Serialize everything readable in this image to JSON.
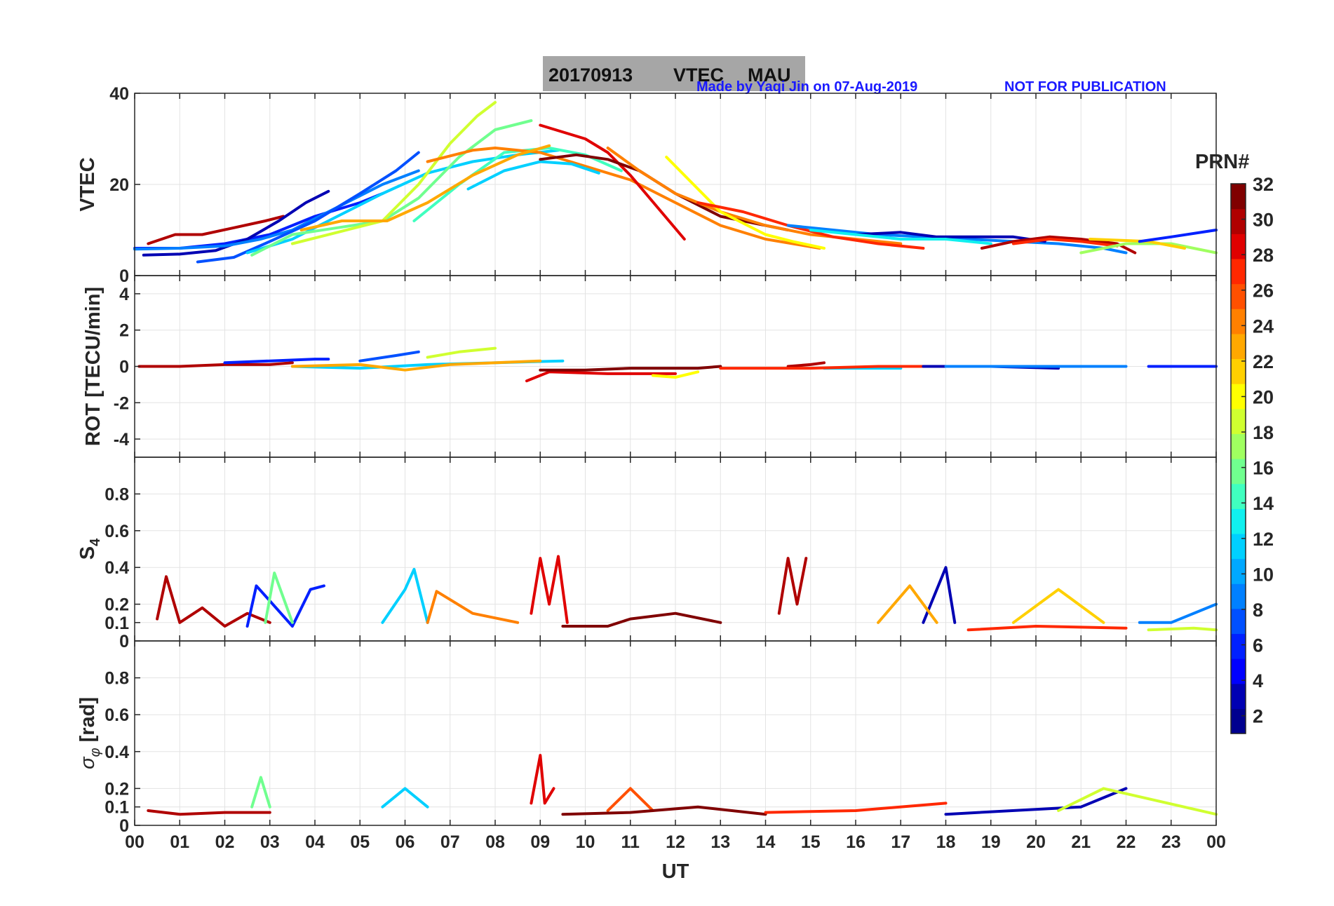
{
  "title": {
    "date": "20170913",
    "product": "VTEC",
    "station": "MAU"
  },
  "credit": "Made by Yaqi Jin on 07-Aug-2019",
  "notice": "NOT FOR PUBLICATION",
  "colors": {
    "notice": "#1a1aff",
    "title_box": "#a6a6a6",
    "grid": "#e3e3e3",
    "axes": "#262626"
  },
  "chart_data": [
    {
      "type": "line",
      "id": "vtec",
      "ylabel": "VTEC",
      "ylim": [
        0,
        40
      ],
      "yticks": [
        0,
        20,
        40
      ],
      "ytick_labels": [
        "0",
        "20",
        "40"
      ],
      "xlim": [
        0,
        24
      ],
      "grid": true,
      "series": [
        {
          "name": "PRN 31",
          "x": [
            0.3,
            0.9,
            1.5,
            2.2,
            2.9,
            3.3
          ],
          "y": [
            7,
            9,
            9,
            10.5,
            12,
            13
          ]
        },
        {
          "name": "PRN 5",
          "x": [
            0,
            1,
            2,
            3,
            4,
            5,
            5.5
          ],
          "y": [
            6,
            6,
            7,
            9,
            13,
            16,
            18
          ]
        },
        {
          "name": "PRN 3",
          "x": [
            0.2,
            1,
            1.8,
            2.5,
            3.2,
            3.8,
            4.3
          ],
          "y": [
            4.5,
            4.7,
            5.5,
            8,
            12,
            16,
            18.5
          ]
        },
        {
          "name": "PRN 9",
          "x": [
            0,
            1,
            2,
            2.8,
            3.5,
            4.5,
            5.5,
            6.3
          ],
          "y": [
            5.8,
            6,
            6.5,
            8,
            10,
            15,
            20,
            23
          ]
        },
        {
          "name": "PRN 7",
          "x": [
            1.4,
            2.2,
            3,
            4,
            5,
            5.8,
            6.3
          ],
          "y": [
            3,
            4,
            7.5,
            12,
            18,
            23,
            27
          ]
        },
        {
          "name": "PRN 12",
          "x": [
            2.5,
            3.5,
            4.5,
            5.5,
            6.5,
            7.5,
            8.5,
            9.4
          ],
          "y": [
            5,
            8,
            13,
            18,
            22.5,
            25,
            26.5,
            27.5
          ]
        },
        {
          "name": "PRN 16",
          "x": [
            2.6,
            3.5,
            4.5,
            5.5,
            6.3,
            7.2,
            8,
            8.8
          ],
          "y": [
            4.5,
            9,
            10.5,
            12,
            17,
            26,
            32,
            34
          ]
        },
        {
          "name": "PRN 19",
          "x": [
            3.5,
            4.5,
            5.5,
            6.3,
            7,
            7.6,
            8
          ],
          "y": [
            7,
            9.5,
            12,
            20,
            29,
            35,
            38
          ]
        },
        {
          "name": "PRN 14",
          "x": [
            6.2,
            7.2,
            8.2,
            9.2,
            10,
            10.8
          ],
          "y": [
            12,
            20,
            27,
            28,
            26.5,
            23
          ]
        },
        {
          "name": "PRN 24",
          "x": [
            6.5,
            7.5,
            8,
            9,
            10,
            11,
            12,
            13,
            14,
            15.2
          ],
          "y": [
            25,
            27.5,
            28,
            27,
            24,
            21,
            16,
            11,
            8,
            6
          ]
        },
        {
          "name": "PRN 23",
          "x": [
            3.7,
            4.6,
            5.6,
            6.5,
            7.5,
            8.5,
            9.2
          ],
          "y": [
            10,
            12,
            12,
            16,
            22,
            26.5,
            28.5
          ]
        },
        {
          "name": "PRN 11",
          "x": [
            7.4,
            8.2,
            9,
            9.7,
            10.3
          ],
          "y": [
            19,
            23,
            25,
            24.5,
            22.5
          ]
        },
        {
          "name": "PRN 29",
          "x": [
            9,
            10,
            10.5,
            11,
            11.6,
            12.2
          ],
          "y": [
            33,
            30,
            27,
            22,
            15,
            8
          ]
        },
        {
          "name": "PRN 32",
          "x": [
            9,
            9.8,
            10.5,
            11.2,
            12,
            13,
            14.5
          ],
          "y": [
            25.5,
            26.5,
            25.5,
            23,
            18,
            13,
            10
          ]
        },
        {
          "name": "PRN 25",
          "x": [
            10.5,
            11.2,
            12,
            13,
            14,
            15,
            16,
            17
          ],
          "y": [
            28,
            23,
            18,
            14,
            11,
            9,
            8,
            7
          ]
        },
        {
          "name": "PRN 20",
          "x": [
            11.8,
            12.3,
            13,
            14,
            14.6,
            15.3
          ],
          "y": [
            26,
            21,
            14,
            9,
            7.5,
            6
          ]
        },
        {
          "name": "PRN 27",
          "x": [
            12.5,
            13.5,
            14.5,
            15.5,
            16.5,
            17.5
          ],
          "y": [
            16,
            14,
            11,
            8.5,
            7,
            6
          ]
        },
        {
          "name": "PRN 8",
          "x": [
            14.5,
            15.5,
            16.5,
            17.5,
            18.5,
            19.5,
            20.5,
            21.5,
            22
          ],
          "y": [
            11,
            10,
            9,
            8.5,
            8,
            7.5,
            7,
            6,
            5
          ]
        },
        {
          "name": "PRN 2",
          "x": [
            16,
            17,
            17.8,
            18.8,
            19.5,
            20.2
          ],
          "y": [
            9,
            9.5,
            8.5,
            8.5,
            8.5,
            7.5
          ]
        },
        {
          "name": "PRN 13",
          "x": [
            15,
            16,
            17,
            18,
            19
          ],
          "y": [
            10,
            9,
            8,
            8,
            7
          ]
        },
        {
          "name": "PRN 30",
          "x": [
            18.8,
            19.5,
            20.3,
            21,
            21.8,
            22.2
          ],
          "y": [
            6,
            7.5,
            8.5,
            8,
            7,
            5
          ]
        },
        {
          "name": "PRN 28",
          "x": [
            19.5,
            20.3,
            21,
            21.8
          ],
          "y": [
            7,
            8,
            7.5,
            6.5
          ]
        },
        {
          "name": "PRN 17",
          "x": [
            21,
            22,
            23,
            24
          ],
          "y": [
            5,
            7,
            7,
            5
          ]
        },
        {
          "name": "PRN 22",
          "x": [
            21.2,
            22.5,
            23.3
          ],
          "y": [
            8,
            7.5,
            6
          ]
        },
        {
          "name": "PRN 6",
          "x": [
            22.3,
            23,
            24
          ],
          "y": [
            7.5,
            8.5,
            10
          ]
        }
      ]
    },
    {
      "type": "line",
      "id": "rot",
      "ylabel": "ROT [TECU/min]",
      "ylim": [
        -5,
        5
      ],
      "yticks": [
        -4,
        -2,
        0,
        2,
        4
      ],
      "ytick_labels": [
        "-4",
        "-2",
        "0",
        "2",
        "4"
      ],
      "xlim": [
        0,
        24
      ],
      "grid": true,
      "series": [
        {
          "name": "PRN 31",
          "x": [
            0.1,
            1,
            2,
            3,
            3.5
          ],
          "y": [
            0,
            0,
            0.1,
            0.1,
            0.2
          ]
        },
        {
          "name": "PRN 5",
          "x": [
            2,
            3,
            4,
            4.3
          ],
          "y": [
            0.2,
            0.3,
            0.4,
            0.4
          ]
        },
        {
          "name": "PRN 7",
          "x": [
            5,
            5.8,
            6.3
          ],
          "y": [
            0.3,
            0.6,
            0.8
          ]
        },
        {
          "name": "PRN 19",
          "x": [
            6.5,
            7.2,
            8
          ],
          "y": [
            0.5,
            0.8,
            1
          ]
        },
        {
          "name": "PRN 12",
          "x": [
            3.5,
            5,
            6.5,
            9.5
          ],
          "y": [
            0,
            -0.1,
            0.1,
            0.3
          ]
        },
        {
          "name": "PRN 23",
          "x": [
            3.5,
            5,
            6,
            7,
            9
          ],
          "y": [
            0,
            0.1,
            -0.2,
            0.1,
            0.3
          ]
        },
        {
          "name": "PRN 29",
          "x": [
            8.7,
            9.2,
            10.5,
            12
          ],
          "y": [
            -0.8,
            -0.3,
            -0.4,
            -0.4
          ]
        },
        {
          "name": "PRN 32",
          "x": [
            9,
            10,
            11,
            12.5,
            13
          ],
          "y": [
            -0.2,
            -0.2,
            -0.1,
            -0.1,
            0
          ]
        },
        {
          "name": "PRN 20",
          "x": [
            11.5,
            12,
            12.5
          ],
          "y": [
            -0.5,
            -0.6,
            -0.3
          ]
        },
        {
          "name": "PRN 31b",
          "x": [
            14.5,
            15,
            15.3
          ],
          "y": [
            0,
            0.1,
            0.2
          ]
        },
        {
          "name": "PRN 11",
          "x": [
            15.3,
            16,
            17
          ],
          "y": [
            -0.1,
            -0.1,
            -0.1
          ]
        },
        {
          "name": "PRN 27",
          "x": [
            13,
            15,
            16.5,
            18
          ],
          "y": [
            -0.1,
            -0.1,
            0,
            0
          ]
        },
        {
          "name": "PRN 2",
          "x": [
            17.5,
            19,
            20.5
          ],
          "y": [
            0,
            0,
            -0.1
          ]
        },
        {
          "name": "PRN 8",
          "x": [
            18,
            20,
            22
          ],
          "y": [
            0,
            0,
            0
          ]
        },
        {
          "name": "PRN 6",
          "x": [
            22.5,
            24
          ],
          "y": [
            0,
            0
          ]
        }
      ]
    },
    {
      "type": "line",
      "id": "s4",
      "ylabel": "S4",
      "ylim": [
        0,
        1
      ],
      "yticks": [
        0,
        0.1,
        0.2,
        0.4,
        0.6,
        0.8
      ],
      "ytick_labels": [
        "0",
        "0.1",
        "0.2",
        "0.4",
        "0.6",
        "0.8"
      ],
      "xlim": [
        0,
        24
      ],
      "grid": true,
      "series": [
        {
          "name": "PRN 31",
          "x": [
            0.5,
            0.7,
            1,
            1.5,
            2,
            2.5,
            3
          ],
          "y": [
            0.12,
            0.35,
            0.1,
            0.18,
            0.08,
            0.15,
            0.1
          ]
        },
        {
          "name": "PRN 5",
          "x": [
            2.5,
            2.7,
            3.5,
            3.9,
            4.2
          ],
          "y": [
            0.08,
            0.3,
            0.08,
            0.28,
            0.3
          ]
        },
        {
          "name": "PRN 16",
          "x": [
            2.9,
            3.1,
            3.5
          ],
          "y": [
            0.1,
            0.37,
            0.1
          ]
        },
        {
          "name": "PRN 12",
          "x": [
            5.5,
            6,
            6.2,
            6.5
          ],
          "y": [
            0.1,
            0.28,
            0.39,
            0.1
          ]
        },
        {
          "name": "PRN 24",
          "x": [
            6.5,
            6.7,
            7.5,
            8.5
          ],
          "y": [
            0.1,
            0.27,
            0.15,
            0.1
          ]
        },
        {
          "name": "PRN 29",
          "x": [
            8.8,
            9,
            9.2,
            9.4,
            9.6
          ],
          "y": [
            0.15,
            0.45,
            0.2,
            0.46,
            0.1
          ]
        },
        {
          "name": "PRN 32",
          "x": [
            9.5,
            10.5,
            11,
            12,
            13
          ],
          "y": [
            0.08,
            0.08,
            0.12,
            0.15,
            0.1
          ]
        },
        {
          "name": "PRN 30",
          "x": [
            14.3,
            14.5,
            14.7,
            14.9
          ],
          "y": [
            0.15,
            0.45,
            0.2,
            0.45
          ]
        },
        {
          "name": "PRN 2",
          "x": [
            17.5,
            18,
            18.2
          ],
          "y": [
            0.1,
            0.4,
            0.1
          ]
        },
        {
          "name": "PRN 23",
          "x": [
            16.5,
            17.2,
            17.8
          ],
          "y": [
            0.1,
            0.3,
            0.1
          ]
        },
        {
          "name": "PRN 22",
          "x": [
            19.5,
            20.5,
            21.5
          ],
          "y": [
            0.1,
            0.28,
            0.1
          ]
        },
        {
          "name": "PRN 28",
          "x": [
            18.5,
            20,
            22
          ],
          "y": [
            0.06,
            0.08,
            0.07
          ]
        },
        {
          "name": "PRN 18",
          "x": [
            22.5,
            23.5,
            24
          ],
          "y": [
            0.06,
            0.07,
            0.06
          ]
        },
        {
          "name": "PRN 8",
          "x": [
            22.3,
            23,
            24
          ],
          "y": [
            0.1,
            0.1,
            0.2
          ]
        }
      ]
    },
    {
      "type": "line",
      "id": "sigma_phi",
      "ylabel": "σ_φ [rad]",
      "ylim": [
        0,
        1
      ],
      "yticks": [
        0,
        0.1,
        0.2,
        0.4,
        0.6,
        0.8
      ],
      "ytick_labels": [
        "0",
        "0.1",
        "0.2",
        "0.4",
        "0.6",
        "0.8"
      ],
      "xlim": [
        0,
        24
      ],
      "xticks": [
        0,
        1,
        2,
        3,
        4,
        5,
        6,
        7,
        8,
        9,
        10,
        11,
        12,
        13,
        14,
        15,
        16,
        17,
        18,
        19,
        20,
        21,
        22,
        23,
        24
      ],
      "xtick_labels": [
        "00",
        "01",
        "02",
        "03",
        "04",
        "05",
        "06",
        "07",
        "08",
        "09",
        "10",
        "11",
        "12",
        "13",
        "14",
        "15",
        "16",
        "17",
        "18",
        "19",
        "20",
        "21",
        "22",
        "23",
        "00"
      ],
      "xlabel": "UT",
      "grid": true,
      "series": [
        {
          "name": "PRN 31",
          "x": [
            0.3,
            1,
            2,
            3
          ],
          "y": [
            0.08,
            0.06,
            0.07,
            0.07
          ]
        },
        {
          "name": "PRN 16",
          "x": [
            2.6,
            2.8,
            3
          ],
          "y": [
            0.1,
            0.26,
            0.1
          ]
        },
        {
          "name": "PRN 12",
          "x": [
            5.5,
            6,
            6.5
          ],
          "y": [
            0.1,
            0.2,
            0.1
          ]
        },
        {
          "name": "PRN 29",
          "x": [
            8.8,
            9,
            9.1,
            9.3
          ],
          "y": [
            0.12,
            0.38,
            0.12,
            0.2
          ]
        },
        {
          "name": "PRN 26",
          "x": [
            10.5,
            11,
            11.5
          ],
          "y": [
            0.08,
            0.2,
            0.08
          ]
        },
        {
          "name": "PRN 32",
          "x": [
            9.5,
            11,
            12.5,
            14
          ],
          "y": [
            0.06,
            0.07,
            0.1,
            0.06
          ]
        },
        {
          "name": "PRN 27",
          "x": [
            14,
            16,
            18
          ],
          "y": [
            0.07,
            0.08,
            0.12
          ]
        },
        {
          "name": "PRN 2",
          "x": [
            18,
            21,
            22
          ],
          "y": [
            0.06,
            0.1,
            0.2
          ]
        },
        {
          "name": "PRN 18",
          "x": [
            20.5,
            21.5,
            24
          ],
          "y": [
            0.08,
            0.2,
            0.06
          ]
        }
      ]
    }
  ],
  "colorbar": {
    "label": "PRN#",
    "range": [
      1,
      32
    ],
    "tick_labels": [
      "2",
      "4",
      "6",
      "8",
      "10",
      "12",
      "14",
      "16",
      "18",
      "20",
      "22",
      "24",
      "26",
      "28",
      "30",
      "32"
    ],
    "colors": [
      "#00008f",
      "#0000b3",
      "#0000ff",
      "#0020ff",
      "#0050ff",
      "#0080ff",
      "#00a8ff",
      "#00d0ff",
      "#10f0ef",
      "#40ffbf",
      "#70ff8f",
      "#a0ff60",
      "#d0ff30",
      "#ffff00",
      "#ffd000",
      "#ffa800",
      "#ff8000",
      "#ff5000",
      "#ff2800",
      "#e00000",
      "#b00000",
      "#800000"
    ]
  }
}
